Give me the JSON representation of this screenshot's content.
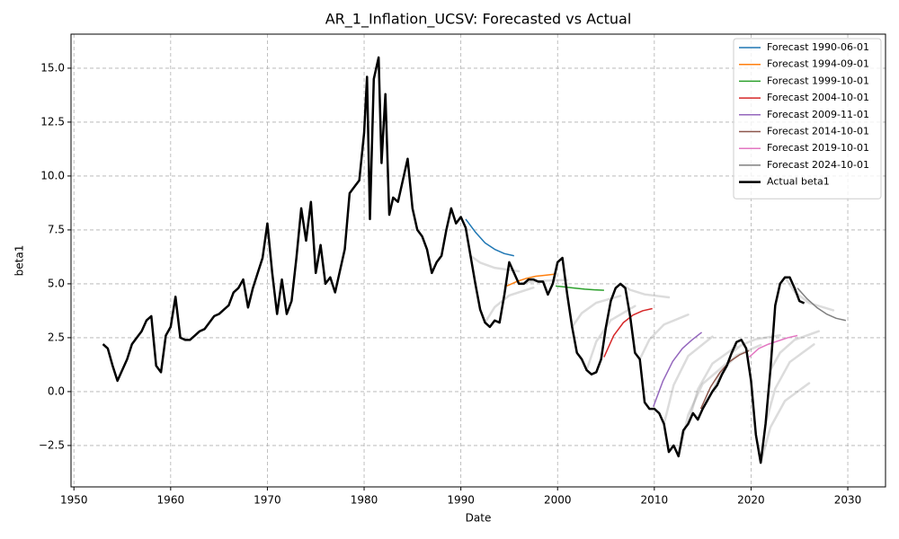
{
  "chart_data": {
    "type": "line",
    "title": "AR_1_Inflation_UCSV: Forecasted vs Actual",
    "xlabel": "Date",
    "ylabel": "beta1",
    "xlim": [
      1949.7,
      2033.9
    ],
    "ylim": [
      -4.42,
      16.58
    ],
    "xticks": [
      1950,
      1960,
      1970,
      1980,
      1990,
      2000,
      2010,
      2020,
      2030
    ],
    "yticks": [
      {
        "value": -2.5,
        "label": "−2.5"
      },
      {
        "value": 0,
        "label": "0.0"
      },
      {
        "value": 2.5,
        "label": "2.5"
      },
      {
        "value": 5,
        "label": "5.0"
      },
      {
        "value": 7.5,
        "label": "7.5"
      },
      {
        "value": 10,
        "label": "10.0"
      },
      {
        "value": 12.5,
        "label": "12.5"
      },
      {
        "value": 15,
        "label": "15.0"
      }
    ],
    "grid": true,
    "legend": "upper right",
    "faded_forecasts": {
      "color": "#808080",
      "lines": [
        {
          "x": [
            1991,
            1992,
            1993.5,
            1996
          ],
          "values": [
            6.3,
            5.98,
            5.74,
            5.58
          ]
        },
        {
          "x": [
            1992.5,
            1993.5,
            1995,
            1997.5
          ],
          "values": [
            3.2,
            3.92,
            4.46,
            4.82
          ]
        },
        {
          "x": [
            1996,
            1997,
            1998.5,
            2001
          ],
          "values": [
            5.0,
            5.08,
            5.14,
            5.18
          ]
        },
        {
          "x": [
            2001.5,
            2002.5,
            2004,
            2006.5
          ],
          "values": [
            3.0,
            3.64,
            4.12,
            4.44
          ]
        },
        {
          "x": [
            2003,
            2004,
            2005.5,
            2008
          ],
          "values": [
            1.0,
            2.32,
            3.31,
            3.97
          ]
        },
        {
          "x": [
            2006.5,
            2007.5,
            2009,
            2011.5
          ],
          "values": [
            5.0,
            4.72,
            4.51,
            4.37
          ]
        },
        {
          "x": [
            2008.5,
            2009.5,
            2011,
            2013.5
          ],
          "values": [
            1.5,
            2.42,
            3.11,
            3.57
          ]
        },
        {
          "x": [
            2011,
            2012,
            2013.5,
            2016
          ],
          "values": [
            -1.5,
            0.3,
            1.65,
            2.55
          ]
        },
        {
          "x": [
            2012.5,
            2013.5,
            2015,
            2017.5
          ],
          "values": [
            -3.0,
            -1.08,
            0.36,
            1.32
          ]
        },
        {
          "x": [
            2013.5,
            2014.5,
            2016,
            2018.5
          ],
          "values": [
            -1.5,
            0.1,
            1.3,
            2.1
          ]
        },
        {
          "x": [
            2016,
            2017,
            2018.5,
            2021
          ],
          "values": [
            0,
            0.96,
            1.68,
            2.16
          ]
        },
        {
          "x": [
            2018,
            2019,
            2020.5,
            2023
          ],
          "values": [
            1.8,
            2.16,
            2.43,
            2.61
          ]
        },
        {
          "x": [
            2021,
            2022,
            2023.5,
            2026
          ],
          "values": [
            -3.3,
            -1.66,
            -0.43,
            0.39
          ]
        },
        {
          "x": [
            2021.5,
            2022.5,
            2024,
            2026.5
          ],
          "values": [
            -1.5,
            0.14,
            1.37,
            2.19
          ]
        },
        {
          "x": [
            2022,
            2023,
            2024.5,
            2027
          ],
          "values": [
            1.0,
            1.8,
            2.4,
            2.8
          ]
        },
        {
          "x": [
            2023.5,
            2024.5,
            2026,
            2028.5
          ],
          "values": [
            5.3,
            4.62,
            4.11,
            3.77
          ]
        }
      ]
    },
    "series": [
      {
        "name": "Forecast 1990-06-01",
        "color": "#1f77b4",
        "linewidth": 1.5,
        "x": [
          1990.5,
          1991.5,
          1992.5,
          1993.5,
          1994.5,
          1995.5
        ],
        "values": [
          8.0,
          7.4,
          6.9,
          6.6,
          6.4,
          6.3
        ]
      },
      {
        "name": "Forecast 1994-09-01",
        "color": "#ff7f0e",
        "linewidth": 1.5,
        "x": [
          1994.75,
          1995.75,
          1996.75,
          1997.75,
          1998.75,
          1999.75
        ],
        "values": [
          4.9,
          5.1,
          5.25,
          5.35,
          5.4,
          5.45
        ]
      },
      {
        "name": "Forecast 1999-10-01",
        "color": "#2ca02c",
        "linewidth": 1.5,
        "x": [
          1999.8,
          2000.8,
          2001.8,
          2002.8,
          2003.8,
          2004.8
        ],
        "values": [
          4.9,
          4.85,
          4.8,
          4.75,
          4.72,
          4.7
        ]
      },
      {
        "name": "Forecast 2004-10-01",
        "color": "#d62728",
        "linewidth": 1.5,
        "x": [
          2004.8,
          2005.8,
          2006.8,
          2007.8,
          2008.8,
          2009.8
        ],
        "values": [
          1.6,
          2.6,
          3.2,
          3.55,
          3.75,
          3.85
        ]
      },
      {
        "name": "Forecast 2009-11-01",
        "color": "#9467bd",
        "linewidth": 1.5,
        "x": [
          2009.9,
          2010.9,
          2011.9,
          2012.9,
          2013.9,
          2014.9
        ],
        "values": [
          -0.7,
          0.5,
          1.4,
          2.0,
          2.4,
          2.75
        ]
      },
      {
        "name": "Forecast 2014-10-01",
        "color": "#8c564b",
        "linewidth": 1.5,
        "x": [
          2014.8,
          2015.8,
          2016.8,
          2017.8,
          2018.8,
          2019.8
        ],
        "values": [
          -0.8,
          0.2,
          0.9,
          1.4,
          1.7,
          1.9
        ]
      },
      {
        "name": "Forecast 2019-10-01",
        "color": "#e377c2",
        "linewidth": 1.5,
        "x": [
          2019.8,
          2020.8,
          2021.8,
          2022.8,
          2023.8,
          2024.8
        ],
        "values": [
          1.6,
          2.0,
          2.2,
          2.35,
          2.5,
          2.6
        ]
      },
      {
        "name": "Forecast 2024-10-01",
        "color": "#7f7f7f",
        "linewidth": 1.5,
        "x": [
          2024.8,
          2025.8,
          2026.8,
          2027.8,
          2028.8,
          2029.8
        ],
        "values": [
          4.8,
          4.3,
          3.9,
          3.6,
          3.4,
          3.3
        ]
      },
      {
        "name": "Actual beta1",
        "color": "#000000",
        "linewidth": 2.5,
        "x": [
          1953,
          1953.5,
          1954,
          1954.5,
          1955,
          1955.5,
          1956,
          1956.5,
          1957,
          1957.5,
          1958,
          1958.5,
          1959,
          1959.5,
          1960,
          1960.5,
          1961,
          1961.5,
          1962,
          1962.5,
          1963,
          1963.5,
          1964,
          1964.5,
          1965,
          1965.5,
          1966,
          1966.5,
          1967,
          1967.5,
          1968,
          1968.5,
          1969,
          1969.5,
          1970,
          1970.5,
          1971,
          1971.5,
          1972,
          1972.5,
          1973,
          1973.5,
          1974,
          1974.5,
          1975,
          1975.5,
          1976,
          1976.5,
          1977,
          1977.5,
          1978,
          1978.5,
          1979,
          1979.5,
          1980,
          1980.3,
          1980.6,
          1981,
          1981.5,
          1981.8,
          1982.2,
          1982.6,
          1983,
          1983.5,
          1984,
          1984.5,
          1985,
          1985.5,
          1986,
          1986.5,
          1987,
          1987.5,
          1988,
          1988.5,
          1989,
          1989.5,
          1990,
          1990.5,
          1991,
          1991.5,
          1992,
          1992.5,
          1993,
          1993.5,
          1994,
          1994.5,
          1995,
          1995.5,
          1996,
          1996.5,
          1997,
          1997.5,
          1998,
          1998.5,
          1999,
          1999.5,
          2000,
          2000.5,
          2001,
          2001.5,
          2002,
          2002.5,
          2003,
          2003.5,
          2004,
          2004.5,
          2005,
          2005.5,
          2006,
          2006.5,
          2007,
          2007.5,
          2008,
          2008.5,
          2009,
          2009.5,
          2010,
          2010.5,
          2011,
          2011.5,
          2012,
          2012.5,
          2013,
          2013.5,
          2014,
          2014.5,
          2015,
          2015.5,
          2016,
          2016.5,
          2017,
          2017.5,
          2018,
          2018.5,
          2019,
          2019.5,
          2020,
          2020.5,
          2021,
          2021.5,
          2022,
          2022.5,
          2023,
          2023.5,
          2024,
          2024.5,
          2025,
          2025.5
        ],
        "values": [
          2.2,
          2.0,
          1.2,
          0.5,
          1.0,
          1.5,
          2.2,
          2.5,
          2.8,
          3.3,
          3.5,
          1.2,
          0.9,
          2.6,
          3.0,
          4.4,
          2.5,
          2.4,
          2.4,
          2.6,
          2.8,
          2.9,
          3.2,
          3.5,
          3.6,
          3.8,
          4.0,
          4.6,
          4.8,
          5.2,
          3.9,
          4.8,
          5.5,
          6.2,
          7.8,
          5.5,
          3.6,
          5.2,
          3.6,
          4.2,
          6.2,
          8.5,
          7.0,
          8.8,
          5.5,
          6.8,
          5.0,
          5.3,
          4.6,
          5.6,
          6.6,
          9.2,
          9.5,
          9.8,
          12.0,
          14.6,
          8.0,
          14.5,
          15.5,
          10.6,
          13.8,
          8.2,
          9.0,
          8.8,
          9.8,
          10.8,
          8.5,
          7.5,
          7.2,
          6.6,
          5.5,
          6.0,
          6.3,
          7.5,
          8.5,
          7.8,
          8.1,
          7.6,
          6.3,
          5.0,
          3.8,
          3.2,
          3.0,
          3.3,
          3.2,
          4.5,
          6.0,
          5.5,
          5.0,
          5.0,
          5.2,
          5.2,
          5.1,
          5.1,
          4.5,
          5.0,
          6.0,
          6.2,
          4.5,
          3.0,
          1.8,
          1.5,
          1.0,
          0.8,
          0.9,
          1.5,
          3.0,
          4.2,
          4.8,
          5.0,
          4.8,
          3.5,
          1.8,
          1.5,
          -0.5,
          -0.8,
          -0.8,
          -1.0,
          -1.5,
          -2.8,
          -2.5,
          -3.0,
          -1.8,
          -1.5,
          -1.0,
          -1.3,
          -0.8,
          -0.4,
          0.0,
          0.3,
          0.8,
          1.2,
          1.8,
          2.3,
          2.4,
          2.0,
          0.5,
          -2.0,
          -3.3,
          -1.5,
          1.0,
          4.0,
          5.0,
          5.3,
          5.3,
          4.8,
          4.2,
          4.1
        ]
      }
    ]
  }
}
